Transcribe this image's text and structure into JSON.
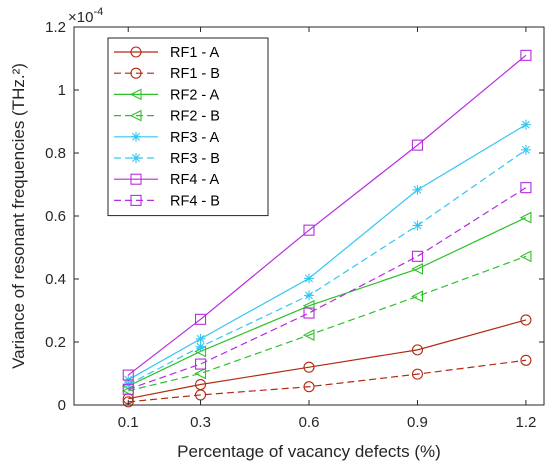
{
  "chart_data": {
    "type": "line",
    "xlabel": "Percentage of vacancy defects (%)",
    "ylabel": "Variance of resonant frequencies (THz.²)",
    "y_exponent_label": "×10",
    "y_exponent": "-4",
    "x": [
      0.1,
      0.3,
      0.6,
      0.9,
      1.2
    ],
    "x_tick_labels": [
      "0.1",
      "0.3",
      "0.6",
      "0.9",
      "1.2"
    ],
    "xlim": [
      -0.05,
      1.25
    ],
    "ylim": [
      0,
      1.2
    ],
    "y_ticks": [
      0,
      0.2,
      0.4,
      0.6,
      0.8,
      1,
      1.2
    ],
    "y_tick_labels": [
      "0",
      "0.2",
      "0.4",
      "0.6",
      "0.8",
      "1",
      "1.2"
    ],
    "grid": false,
    "legend_position": "top-left",
    "series": [
      {
        "name": "RF1 - A",
        "color": "#b22a10",
        "line": "solid",
        "marker": "circle",
        "values": [
          0.02,
          0.065,
          0.12,
          0.175,
          0.27
        ]
      },
      {
        "name": "RF1 - B",
        "color": "#b22a10",
        "line": "dashed",
        "marker": "circle",
        "values": [
          0.01,
          0.032,
          0.058,
          0.098,
          0.142
        ]
      },
      {
        "name": "RF2 - A",
        "color": "#2ec12a",
        "line": "solid",
        "marker": "triangle-left",
        "values": [
          0.06,
          0.17,
          0.315,
          0.432,
          0.595
        ]
      },
      {
        "name": "RF2 - B",
        "color": "#2ec12a",
        "line": "dashed",
        "marker": "triangle-left",
        "values": [
          0.045,
          0.1,
          0.222,
          0.345,
          0.472
        ]
      },
      {
        "name": "RF3 - A",
        "color": "#34c6f2",
        "line": "solid",
        "marker": "asterisk",
        "values": [
          0.08,
          0.21,
          0.402,
          0.683,
          0.89
        ]
      },
      {
        "name": "RF3 - B",
        "color": "#34c6f2",
        "line": "dashed",
        "marker": "asterisk",
        "values": [
          0.065,
          0.185,
          0.348,
          0.57,
          0.81
        ]
      },
      {
        "name": "RF4 - A",
        "color": "#b62cde",
        "line": "solid",
        "marker": "square",
        "values": [
          0.095,
          0.272,
          0.555,
          0.825,
          1.11
        ]
      },
      {
        "name": "RF4 - B",
        "color": "#b62cde",
        "line": "dashed",
        "marker": "square",
        "values": [
          0.05,
          0.13,
          0.292,
          0.472,
          0.69
        ]
      }
    ]
  }
}
